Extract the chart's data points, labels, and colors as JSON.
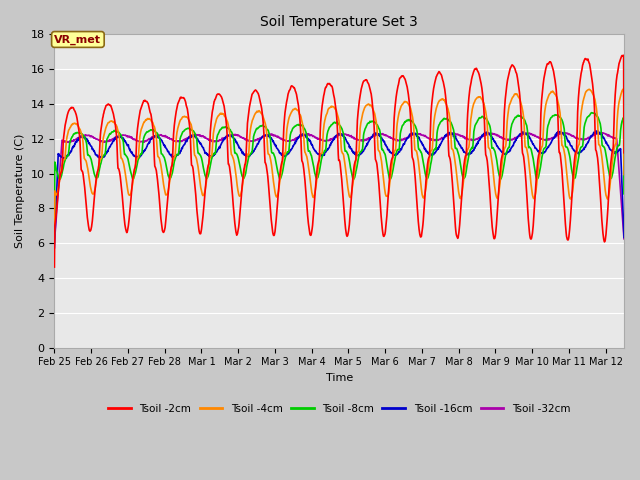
{
  "title": "Soil Temperature Set 3",
  "xlabel": "Time",
  "ylabel": "Soil Temperature (C)",
  "ylim": [
    0,
    18
  ],
  "yticks": [
    0,
    2,
    4,
    6,
    8,
    10,
    12,
    14,
    16,
    18
  ],
  "fig_bg": "#c8c8c8",
  "plot_bg": "#e8e8e8",
  "grid_color": "#ffffff",
  "annotation_text": "VR_met",
  "series": {
    "Tsoil -2cm": {
      "color": "#ff0000",
      "lw": 1.2
    },
    "Tsoil -4cm": {
      "color": "#ff8800",
      "lw": 1.2
    },
    "Tsoil -8cm": {
      "color": "#00cc00",
      "lw": 1.2
    },
    "Tsoil -16cm": {
      "color": "#0000cc",
      "lw": 1.2
    },
    "Tsoil -32cm": {
      "color": "#aa00aa",
      "lw": 1.2
    }
  },
  "x_tick_labels": [
    "Feb 25",
    "Feb 26",
    "Feb 27",
    "Feb 28",
    "Mar 1",
    "Mar 2",
    "Mar 3",
    "Mar 4",
    "Mar 5",
    "Mar 6",
    "Mar 7",
    "Mar 8",
    "Mar 9",
    "Mar 10",
    "Mar 11",
    "Mar 12"
  ],
  "n_days": 15.5
}
